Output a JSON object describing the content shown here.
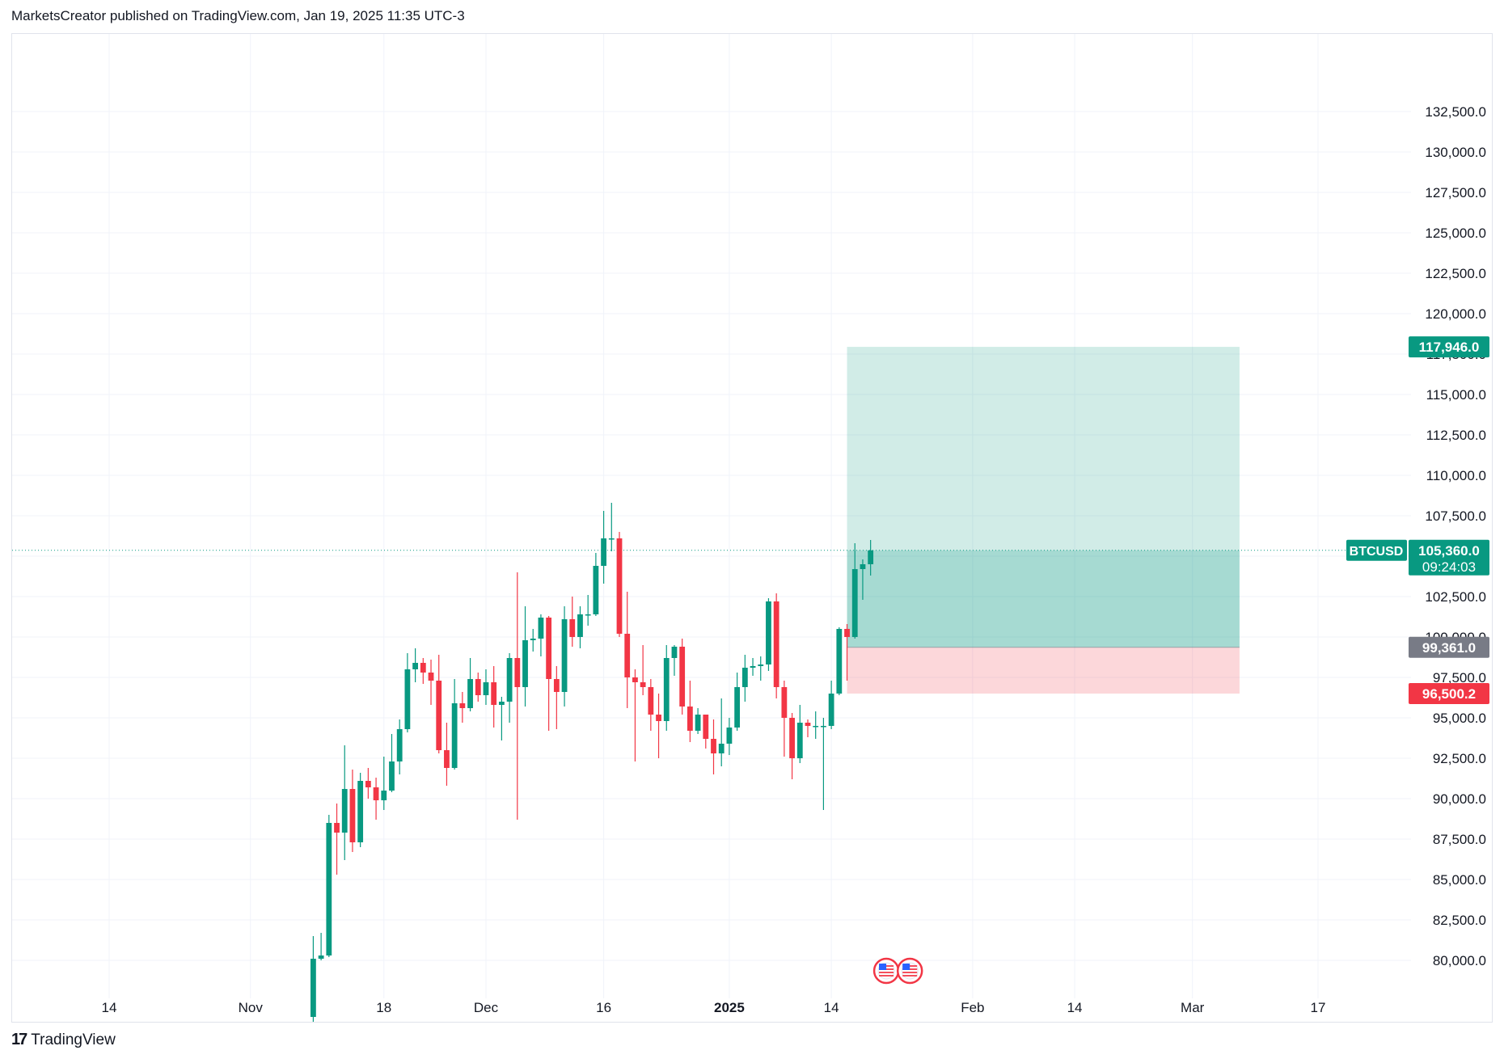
{
  "header": {
    "published_text": "MarketsCreator published on TradingView.com, Jan 19, 2025 11:35 UTC-3"
  },
  "footer": {
    "logo_text": "TradingView"
  },
  "chart_data": {
    "type": "candlestick",
    "symbol": "BTCUSD",
    "timeframe": "1D",
    "y_axis": {
      "side": "right",
      "ylim": [
        78500,
        134500
      ],
      "ticks": [
        {
          "value": 80000,
          "label": "80,000.0"
        },
        {
          "value": 82500,
          "label": "82,500.0"
        },
        {
          "value": 85000,
          "label": "85,000.0"
        },
        {
          "value": 87500,
          "label": "87,500.0"
        },
        {
          "value": 90000,
          "label": "90,000.0"
        },
        {
          "value": 92500,
          "label": "92,500.0"
        },
        {
          "value": 95000,
          "label": "95,000.0"
        },
        {
          "value": 97500,
          "label": "97,500.0"
        },
        {
          "value": 100000,
          "label": "100,000.0"
        },
        {
          "value": 102500,
          "label": "102,500.0"
        },
        {
          "value": 105000,
          "label": "105,000.0"
        },
        {
          "value": 107500,
          "label": "107,500.0"
        },
        {
          "value": 110000,
          "label": "110,000.0"
        },
        {
          "value": 112500,
          "label": "112,500.0"
        },
        {
          "value": 115000,
          "label": "115,000.0"
        },
        {
          "value": 117500,
          "label": "117,500.0"
        },
        {
          "value": 120000,
          "label": "120,000.0"
        },
        {
          "value": 122500,
          "label": "122,500.0"
        },
        {
          "value": 125000,
          "label": "125,000.0"
        },
        {
          "value": 127500,
          "label": "127,500.0"
        },
        {
          "value": 130000,
          "label": "130,000.0"
        },
        {
          "value": 132500,
          "label": "132,500.0"
        }
      ]
    },
    "x_axis": {
      "xlim": [
        "2024-10-14",
        "2025-03-25"
      ],
      "ticks": [
        {
          "date": "2024-10-14",
          "label": "14",
          "bold": false
        },
        {
          "date": "2024-11-01",
          "label": "Nov",
          "bold": false
        },
        {
          "date": "2024-11-18",
          "label": "18",
          "bold": false
        },
        {
          "date": "2024-12-01",
          "label": "Dec",
          "bold": false
        },
        {
          "date": "2024-12-16",
          "label": "16",
          "bold": false
        },
        {
          "date": "2025-01-01",
          "label": "2025",
          "bold": true
        },
        {
          "date": "2025-01-14",
          "label": "14",
          "bold": false
        },
        {
          "date": "2025-02-01",
          "label": "Feb",
          "bold": false
        },
        {
          "date": "2025-02-14",
          "label": "14",
          "bold": false
        },
        {
          "date": "2025-03-01",
          "label": "Mar",
          "bold": false
        },
        {
          "date": "2025-03-17",
          "label": "17",
          "bold": false
        }
      ]
    },
    "grid": true,
    "candles": [
      {
        "date": "2024-11-09",
        "o": 76500,
        "h": 81500,
        "l": 76200,
        "c": 80100
      },
      {
        "date": "2024-11-10",
        "o": 80100,
        "h": 81700,
        "l": 80000,
        "c": 80300
      },
      {
        "date": "2024-11-11",
        "o": 80300,
        "h": 89000,
        "l": 80200,
        "c": 88500
      },
      {
        "date": "2024-11-12",
        "o": 88500,
        "h": 89700,
        "l": 85300,
        "c": 87900
      },
      {
        "date": "2024-11-13",
        "o": 87900,
        "h": 93300,
        "l": 86200,
        "c": 90600
      },
      {
        "date": "2024-11-14",
        "o": 90600,
        "h": 91800,
        "l": 86700,
        "c": 87300
      },
      {
        "date": "2024-11-15",
        "o": 87300,
        "h": 91600,
        "l": 87000,
        "c": 91100
      },
      {
        "date": "2024-11-16",
        "o": 91100,
        "h": 91900,
        "l": 90000,
        "c": 90700
      },
      {
        "date": "2024-11-17",
        "o": 90700,
        "h": 91300,
        "l": 88700,
        "c": 89900
      },
      {
        "date": "2024-11-18",
        "o": 89900,
        "h": 92600,
        "l": 89300,
        "c": 90500
      },
      {
        "date": "2024-11-19",
        "o": 90500,
        "h": 94000,
        "l": 90400,
        "c": 92300
      },
      {
        "date": "2024-11-20",
        "o": 92300,
        "h": 94900,
        "l": 91500,
        "c": 94300
      },
      {
        "date": "2024-11-21",
        "o": 94300,
        "h": 99000,
        "l": 94100,
        "c": 98000
      },
      {
        "date": "2024-11-22",
        "o": 98000,
        "h": 99300,
        "l": 97200,
        "c": 98400
      },
      {
        "date": "2024-11-23",
        "o": 98400,
        "h": 98700,
        "l": 97100,
        "c": 97800
      },
      {
        "date": "2024-11-24",
        "o": 97800,
        "h": 98600,
        "l": 95800,
        "c": 97300
      },
      {
        "date": "2024-11-25",
        "o": 97300,
        "h": 98900,
        "l": 92800,
        "c": 93000
      },
      {
        "date": "2024-11-26",
        "o": 93000,
        "h": 94700,
        "l": 90800,
        "c": 91900
      },
      {
        "date": "2024-11-27",
        "o": 91900,
        "h": 97400,
        "l": 91800,
        "c": 95900
      },
      {
        "date": "2024-11-28",
        "o": 95900,
        "h": 96600,
        "l": 94700,
        "c": 95600
      },
      {
        "date": "2024-11-29",
        "o": 95600,
        "h": 98700,
        "l": 95400,
        "c": 97400
      },
      {
        "date": "2024-11-30",
        "o": 97400,
        "h": 97800,
        "l": 96000,
        "c": 96400
      },
      {
        "date": "2024-12-01",
        "o": 96400,
        "h": 98000,
        "l": 95800,
        "c": 97200
      },
      {
        "date": "2024-12-02",
        "o": 97200,
        "h": 98200,
        "l": 94400,
        "c": 95800
      },
      {
        "date": "2024-12-03",
        "o": 95800,
        "h": 96300,
        "l": 93600,
        "c": 96000
      },
      {
        "date": "2024-12-04",
        "o": 96000,
        "h": 99000,
        "l": 94700,
        "c": 98700
      },
      {
        "date": "2024-12-05",
        "o": 98700,
        "h": 104000,
        "l": 88700,
        "c": 96900
      },
      {
        "date": "2024-12-06",
        "o": 96900,
        "h": 101900,
        "l": 95700,
        "c": 99800
      },
      {
        "date": "2024-12-07",
        "o": 99800,
        "h": 100500,
        "l": 99100,
        "c": 99900
      },
      {
        "date": "2024-12-08",
        "o": 99900,
        "h": 101400,
        "l": 98800,
        "c": 101200
      },
      {
        "date": "2024-12-09",
        "o": 101200,
        "h": 101300,
        "l": 94200,
        "c": 97400
      },
      {
        "date": "2024-12-10",
        "o": 97400,
        "h": 98200,
        "l": 94300,
        "c": 96600
      },
      {
        "date": "2024-12-11",
        "o": 96600,
        "h": 101900,
        "l": 95700,
        "c": 101100
      },
      {
        "date": "2024-12-12",
        "o": 101100,
        "h": 102500,
        "l": 99400,
        "c": 100000
      },
      {
        "date": "2024-12-13",
        "o": 100000,
        "h": 101900,
        "l": 99300,
        "c": 101400
      },
      {
        "date": "2024-12-14",
        "o": 101400,
        "h": 102600,
        "l": 100700,
        "c": 101400
      },
      {
        "date": "2024-12-15",
        "o": 101400,
        "h": 105200,
        "l": 101300,
        "c": 104400
      },
      {
        "date": "2024-12-16",
        "o": 104400,
        "h": 107800,
        "l": 103300,
        "c": 106100
      },
      {
        "date": "2024-12-17",
        "o": 106100,
        "h": 108300,
        "l": 105300,
        "c": 106100
      },
      {
        "date": "2024-12-18",
        "o": 106100,
        "h": 106500,
        "l": 100000,
        "c": 100200
      },
      {
        "date": "2024-12-19",
        "o": 100200,
        "h": 102800,
        "l": 95600,
        "c": 97500
      },
      {
        "date": "2024-12-20",
        "o": 97500,
        "h": 98000,
        "l": 92300,
        "c": 97200
      },
      {
        "date": "2024-12-21",
        "o": 97200,
        "h": 99500,
        "l": 96400,
        "c": 96900
      },
      {
        "date": "2024-12-22",
        "o": 96900,
        "h": 97400,
        "l": 94200,
        "c": 95200
      },
      {
        "date": "2024-12-23",
        "o": 95200,
        "h": 96500,
        "l": 92500,
        "c": 94800
      },
      {
        "date": "2024-12-24",
        "o": 94800,
        "h": 99500,
        "l": 94200,
        "c": 98700
      },
      {
        "date": "2024-12-25",
        "o": 98700,
        "h": 99500,
        "l": 97600,
        "c": 99400
      },
      {
        "date": "2024-12-26",
        "o": 99400,
        "h": 99900,
        "l": 95200,
        "c": 95700
      },
      {
        "date": "2024-12-27",
        "o": 95700,
        "h": 97300,
        "l": 93500,
        "c": 94200
      },
      {
        "date": "2024-12-28",
        "o": 94200,
        "h": 95600,
        "l": 94000,
        "c": 95200
      },
      {
        "date": "2024-12-29",
        "o": 95200,
        "h": 95200,
        "l": 93100,
        "c": 93700
      },
      {
        "date": "2024-12-30",
        "o": 93700,
        "h": 94900,
        "l": 91500,
        "c": 92800
      },
      {
        "date": "2024-12-31",
        "o": 92800,
        "h": 96200,
        "l": 92000,
        "c": 93400
      },
      {
        "date": "2025-01-01",
        "o": 93400,
        "h": 95000,
        "l": 92700,
        "c": 94400
      },
      {
        "date": "2025-01-02",
        "o": 94400,
        "h": 97800,
        "l": 94200,
        "c": 96900
      },
      {
        "date": "2025-01-03",
        "o": 96900,
        "h": 98900,
        "l": 96000,
        "c": 98100
      },
      {
        "date": "2025-01-04",
        "o": 98100,
        "h": 98700,
        "l": 97600,
        "c": 98200
      },
      {
        "date": "2025-01-05",
        "o": 98200,
        "h": 98800,
        "l": 97300,
        "c": 98300
      },
      {
        "date": "2025-01-06",
        "o": 98300,
        "h": 102400,
        "l": 97900,
        "c": 102200
      },
      {
        "date": "2025-01-07",
        "o": 102200,
        "h": 102700,
        "l": 96200,
        "c": 96900
      },
      {
        "date": "2025-01-08",
        "o": 96900,
        "h": 97300,
        "l": 92600,
        "c": 95000
      },
      {
        "date": "2025-01-09",
        "o": 95000,
        "h": 95300,
        "l": 91200,
        "c": 92500
      },
      {
        "date": "2025-01-10",
        "o": 92500,
        "h": 95800,
        "l": 92200,
        "c": 94700
      },
      {
        "date": "2025-01-11",
        "o": 94700,
        "h": 94900,
        "l": 93800,
        "c": 94500
      },
      {
        "date": "2025-01-12",
        "o": 94500,
        "h": 95400,
        "l": 93700,
        "c": 94500
      },
      {
        "date": "2025-01-13",
        "o": 94500,
        "h": 95000,
        "l": 89300,
        "c": 94500
      },
      {
        "date": "2025-01-14",
        "o": 94500,
        "h": 97300,
        "l": 94300,
        "c": 96500
      },
      {
        "date": "2025-01-15",
        "o": 96500,
        "h": 100600,
        "l": 96400,
        "c": 100500
      },
      {
        "date": "2025-01-16",
        "o": 100500,
        "h": 100800,
        "l": 97300,
        "c": 100000
      },
      {
        "date": "2025-01-17",
        "o": 100000,
        "h": 105800,
        "l": 99900,
        "c": 104200
      },
      {
        "date": "2025-01-18",
        "o": 104200,
        "h": 104800,
        "l": 102300,
        "c": 104500
      },
      {
        "date": "2025-01-19",
        "o": 104500,
        "h": 106000,
        "l": 103800,
        "c": 105360
      }
    ],
    "position": {
      "kind": "long",
      "start_date": "2025-01-16",
      "end_date": "2025-03-07",
      "entry": 99361.0,
      "target": 117946.0,
      "stop": 96500.2
    },
    "last_price": 105360.0,
    "price_labels": {
      "target": "117,946.0",
      "entry": "99,361.0",
      "stop": "96,500.2",
      "last_price": "105,360.0",
      "countdown": "09:24:03",
      "symbol_tag": "BTCUSD"
    },
    "event_markers": [
      {
        "date": "2025-01-21",
        "icon": "us-flag-icon"
      },
      {
        "date": "2025-01-24",
        "icon": "us-flag-icon"
      }
    ],
    "colors": {
      "up": "#089981",
      "down": "#f23645",
      "target_zone": "#089981",
      "stop_zone": "#f23645",
      "entry_label": "#787b86",
      "grid": "#f0f3fa",
      "axis_text": "#131722"
    }
  }
}
